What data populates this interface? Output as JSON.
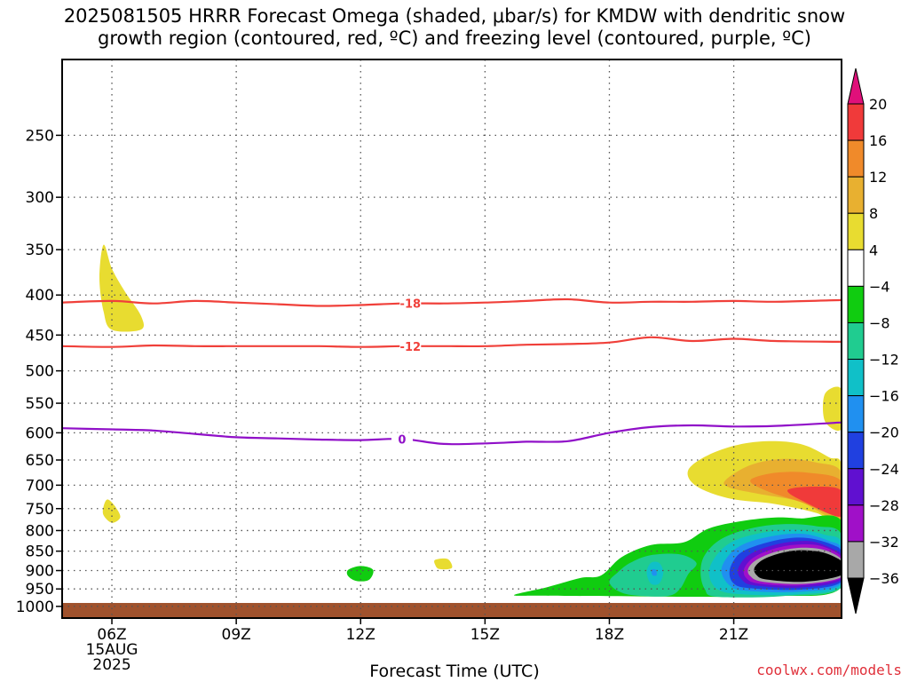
{
  "chart_data": {
    "type": "heatmap",
    "title": "2025081505 HRRR Forecast Omega (shaded, μbar/s) for KMDW with dendritic snow\ngrowth region (contoured, red, ºC) and freezing level (contoured, purple, ºC)",
    "xlabel": "Forecast Time (UTC)",
    "ylabel": "",
    "x_range_hours": [
      4.8,
      23.6
    ],
    "x_ticks": [
      {
        "hour": 6,
        "label": "06Z"
      },
      {
        "hour": 9,
        "label": "09Z"
      },
      {
        "hour": 12,
        "label": "12Z"
      },
      {
        "hour": 15,
        "label": "15Z"
      },
      {
        "hour": 18,
        "label": "18Z"
      },
      {
        "hour": 21,
        "label": "21Z"
      }
    ],
    "date_label": [
      "15AUG",
      "2025"
    ],
    "y_scale": "log-pressure (hPa), inverted",
    "y_range": [
      1035,
      200
    ],
    "y_ticks": [
      250,
      300,
      350,
      400,
      450,
      500,
      550,
      600,
      650,
      700,
      750,
      800,
      850,
      900,
      950,
      1000
    ],
    "grid": true,
    "colorbar": {
      "labels": [
        "20",
        "16",
        "12",
        "8",
        "4",
        "−4",
        "−8",
        "−12",
        "−16",
        "−20",
        "−24",
        "−28",
        "−32",
        "−36"
      ],
      "levels": [
        20,
        16,
        12,
        8,
        4,
        -4,
        -8,
        -12,
        -16,
        -20,
        -24,
        -28,
        -32,
        -36
      ],
      "bands": [
        {
          "from": 16,
          "to": 20,
          "color": "#f03a3a"
        },
        {
          "from": 12,
          "to": 16,
          "color": "#f08a2a"
        },
        {
          "from": 8,
          "to": 12,
          "color": "#e8b030"
        },
        {
          "from": 4,
          "to": 8,
          "color": "#e8dc30"
        },
        {
          "from": -4,
          "to": 4,
          "color": "#ffffff"
        },
        {
          "from": -8,
          "to": -4,
          "color": "#10cc10"
        },
        {
          "from": -12,
          "to": -8,
          "color": "#20cc90"
        },
        {
          "from": -16,
          "to": -12,
          "color": "#10c0c8"
        },
        {
          "from": -20,
          "to": -16,
          "color": "#2090f0"
        },
        {
          "from": -24,
          "to": -20,
          "color": "#2040e0"
        },
        {
          "from": -28,
          "to": -24,
          "color": "#6010d0"
        },
        {
          "from": -32,
          "to": -28,
          "color": "#a010c8"
        },
        {
          "from": -36,
          "to": -32,
          "color": "#a8a8a8"
        }
      ],
      "over_color": "#e0107a",
      "under_color": "#000000"
    },
    "contours": [
      {
        "label": "-18",
        "color": "#f0403a",
        "label_hour": 13.2,
        "points": [
          [
            4.8,
            409
          ],
          [
            6,
            407
          ],
          [
            7,
            410
          ],
          [
            8,
            407
          ],
          [
            9,
            409
          ],
          [
            10,
            411
          ],
          [
            11,
            413
          ],
          [
            12,
            412
          ],
          [
            13,
            410
          ],
          [
            14,
            410
          ],
          [
            15,
            409
          ],
          [
            16,
            407
          ],
          [
            17,
            405
          ],
          [
            18,
            409
          ],
          [
            19,
            408
          ],
          [
            20,
            408
          ],
          [
            21,
            407
          ],
          [
            22,
            408
          ],
          [
            23.6,
            406
          ]
        ]
      },
      {
        "label": "-12",
        "color": "#f0403a",
        "label_hour": 13.2,
        "points": [
          [
            4.8,
            465
          ],
          [
            6,
            466
          ],
          [
            7,
            464
          ],
          [
            8,
            465
          ],
          [
            9,
            465
          ],
          [
            10,
            465
          ],
          [
            11,
            465
          ],
          [
            12,
            466
          ],
          [
            13,
            465
          ],
          [
            14,
            465
          ],
          [
            15,
            465
          ],
          [
            16,
            463
          ],
          [
            17,
            462
          ],
          [
            18,
            460
          ],
          [
            19,
            453
          ],
          [
            20,
            458
          ],
          [
            21,
            455
          ],
          [
            22,
            458
          ],
          [
            23.6,
            459
          ]
        ]
      },
      {
        "label": "0",
        "color": "#9010c8",
        "label_hour": 13.0,
        "points": [
          [
            4.8,
            592
          ],
          [
            6,
            594
          ],
          [
            7,
            596
          ],
          [
            8,
            602
          ],
          [
            9,
            608
          ],
          [
            10,
            610
          ],
          [
            11,
            612
          ],
          [
            12,
            613
          ],
          [
            13,
            611
          ],
          [
            14,
            620
          ],
          [
            15,
            619
          ],
          [
            16,
            616
          ],
          [
            17,
            615
          ],
          [
            18,
            600
          ],
          [
            19,
            590
          ],
          [
            20,
            587
          ],
          [
            21,
            589
          ],
          [
            22,
            588
          ],
          [
            23.6,
            582
          ]
        ]
      }
    ],
    "ground_color": "#a0522d",
    "ground_top_hpa": 990,
    "omega_regions": [
      {
        "value": 6,
        "color": "#e8dc30",
        "points": [
          [
            5.8,
            345
          ],
          [
            6.0,
            370
          ],
          [
            6.3,
            395
          ],
          [
            6.7,
            425
          ],
          [
            6.7,
            443
          ],
          [
            6.0,
            443
          ],
          [
            5.8,
            420
          ],
          [
            5.7,
            380
          ]
        ]
      },
      {
        "value": 6,
        "color": "#e8dc30",
        "points": [
          [
            5.9,
            730
          ],
          [
            6.1,
            748
          ],
          [
            6.2,
            770
          ],
          [
            6.0,
            782
          ],
          [
            5.8,
            765
          ],
          [
            5.8,
            745
          ]
        ]
      },
      {
        "value": -6,
        "color": "#10cc10",
        "points": [
          [
            11.7,
            898
          ],
          [
            12.0,
            888
          ],
          [
            12.3,
            898
          ],
          [
            12.2,
            925
          ],
          [
            11.9,
            928
          ],
          [
            11.7,
            915
          ]
        ]
      },
      {
        "value": 6,
        "color": "#e8dc30",
        "points": [
          [
            13.8,
            872
          ],
          [
            14.1,
            870
          ],
          [
            14.2,
            893
          ],
          [
            13.9,
            896
          ],
          [
            13.8,
            885
          ]
        ]
      },
      {
        "value": 6,
        "color": "#e8dc30",
        "points": [
          [
            23.6,
            528
          ],
          [
            23.2,
            535
          ],
          [
            23.2,
            580
          ],
          [
            23.6,
            593
          ]
        ]
      },
      {
        "value": 6,
        "color": "#e8dc30",
        "points": [
          [
            19.9,
            670
          ],
          [
            20.4,
            640
          ],
          [
            21.2,
            620
          ],
          [
            22.0,
            615
          ],
          [
            22.7,
            622
          ],
          [
            23.3,
            645
          ],
          [
            23.6,
            660
          ],
          [
            23.6,
            785
          ],
          [
            23.0,
            760
          ],
          [
            22.0,
            740
          ],
          [
            20.9,
            728
          ],
          [
            20.1,
            702
          ]
        ]
      },
      {
        "value": 10,
        "color": "#e8b030",
        "points": [
          [
            20.8,
            690
          ],
          [
            21.4,
            660
          ],
          [
            22.2,
            648
          ],
          [
            23.0,
            655
          ],
          [
            23.6,
            675
          ],
          [
            23.6,
            775
          ],
          [
            22.6,
            735
          ],
          [
            21.6,
            718
          ],
          [
            20.9,
            705
          ]
        ]
      },
      {
        "value": 14,
        "color": "#f08a2a",
        "points": [
          [
            21.4,
            690
          ],
          [
            22.0,
            675
          ],
          [
            22.8,
            675
          ],
          [
            23.6,
            692
          ],
          [
            23.6,
            765
          ],
          [
            22.6,
            735
          ],
          [
            21.8,
            712
          ]
        ]
      },
      {
        "value": 18,
        "color": "#f03a3a",
        "points": [
          [
            22.3,
            710
          ],
          [
            23.0,
            703
          ],
          [
            23.6,
            712
          ],
          [
            23.6,
            768
          ],
          [
            22.7,
            735
          ]
        ]
      },
      {
        "value": -6,
        "color": "#10cc10",
        "points": [
          [
            15.7,
            967
          ],
          [
            16.5,
            945
          ],
          [
            17.3,
            920
          ],
          [
            17.8,
            913
          ],
          [
            18.3,
            865
          ],
          [
            19.0,
            835
          ],
          [
            19.8,
            828
          ],
          [
            20.4,
            795
          ],
          [
            21.2,
            778
          ],
          [
            22.0,
            770
          ],
          [
            22.6,
            772
          ],
          [
            23.6,
            778
          ],
          [
            23.6,
            945
          ],
          [
            22.0,
            970
          ],
          [
            20.0,
            972
          ],
          [
            18.0,
            970
          ],
          [
            16.3,
            969
          ]
        ]
      },
      {
        "value": -10,
        "color": "#20cc90",
        "points": [
          [
            18.0,
            930
          ],
          [
            18.2,
            905
          ],
          [
            18.5,
            880
          ],
          [
            19.0,
            860
          ],
          [
            19.7,
            858
          ],
          [
            20.1,
            880
          ],
          [
            19.9,
            910
          ],
          [
            19.7,
            950
          ],
          [
            19.4,
            970
          ],
          [
            18.6,
            968
          ],
          [
            18.2,
            955
          ]
        ]
      },
      {
        "value": -10,
        "color": "#20cc90",
        "points": [
          [
            20.2,
            905
          ],
          [
            20.3,
            860
          ],
          [
            20.7,
            820
          ],
          [
            21.4,
            795
          ],
          [
            22.2,
            785
          ],
          [
            23.0,
            790
          ],
          [
            23.6,
            810
          ],
          [
            23.6,
            945
          ],
          [
            22.2,
            970
          ],
          [
            20.6,
            972
          ],
          [
            20.3,
            950
          ]
        ]
      },
      {
        "value": -14,
        "color": "#10c0c8",
        "points": [
          [
            18.9,
            905
          ],
          [
            19.0,
            880
          ],
          [
            19.2,
            880
          ],
          [
            19.3,
            905
          ],
          [
            19.2,
            935
          ],
          [
            19.0,
            935
          ]
        ]
      },
      {
        "value": -14,
        "color": "#10c0c8",
        "points": [
          [
            20.4,
            905
          ],
          [
            20.6,
            858
          ],
          [
            21.0,
            825
          ],
          [
            21.7,
            805
          ],
          [
            22.5,
            798
          ],
          [
            23.2,
            810
          ],
          [
            23.6,
            830
          ],
          [
            23.6,
            940
          ],
          [
            22.6,
            965
          ],
          [
            21.2,
            965
          ],
          [
            20.6,
            950
          ]
        ]
      },
      {
        "value": -18,
        "color": "#2090f0",
        "points": [
          [
            19.02,
            898
          ],
          [
            19.12,
            898
          ],
          [
            19.14,
            912
          ],
          [
            19.04,
            912
          ]
        ]
      },
      {
        "value": -18,
        "color": "#2090f0",
        "points": [
          [
            20.7,
            900
          ],
          [
            20.9,
            858
          ],
          [
            21.3,
            830
          ],
          [
            22.0,
            812
          ],
          [
            22.7,
            808
          ],
          [
            23.3,
            825
          ],
          [
            23.6,
            845
          ],
          [
            23.6,
            935
          ],
          [
            22.6,
            958
          ],
          [
            21.3,
            955
          ],
          [
            20.9,
            940
          ]
        ]
      },
      {
        "value": -22,
        "color": "#2040e0",
        "points": [
          [
            20.9,
            900
          ],
          [
            21.1,
            860
          ],
          [
            21.5,
            838
          ],
          [
            22.2,
            820
          ],
          [
            22.8,
            818
          ],
          [
            23.4,
            835
          ],
          [
            23.6,
            855
          ],
          [
            23.6,
            930
          ],
          [
            22.6,
            952
          ],
          [
            21.4,
            948
          ],
          [
            21.0,
            935
          ]
        ]
      },
      {
        "value": -26,
        "color": "#6010d0",
        "points": [
          [
            21.1,
            898
          ],
          [
            21.3,
            865
          ],
          [
            21.7,
            843
          ],
          [
            22.3,
            828
          ],
          [
            22.9,
            826
          ],
          [
            23.4,
            845
          ],
          [
            23.6,
            862
          ],
          [
            23.6,
            925
          ],
          [
            22.6,
            946
          ],
          [
            21.5,
            940
          ],
          [
            21.2,
            925
          ]
        ]
      },
      {
        "value": -30,
        "color": "#a010c8",
        "points": [
          [
            21.25,
            896
          ],
          [
            21.45,
            868
          ],
          [
            21.85,
            848
          ],
          [
            22.4,
            835
          ],
          [
            23.0,
            835
          ],
          [
            23.45,
            852
          ],
          [
            23.6,
            870
          ],
          [
            23.6,
            920
          ],
          [
            22.6,
            940
          ],
          [
            21.6,
            935
          ],
          [
            21.3,
            920
          ]
        ]
      },
      {
        "value": -34,
        "color": "#a8a8a8",
        "points": [
          [
            21.35,
            895
          ],
          [
            21.55,
            872
          ],
          [
            22.0,
            852
          ],
          [
            22.55,
            842
          ],
          [
            23.1,
            845
          ],
          [
            23.5,
            862
          ],
          [
            23.6,
            878
          ],
          [
            23.6,
            917
          ],
          [
            22.7,
            936
          ],
          [
            21.7,
            930
          ],
          [
            21.4,
            915
          ]
        ]
      },
      {
        "value": -38,
        "color": "#000000",
        "points": [
          [
            21.5,
            893
          ],
          [
            21.7,
            872
          ],
          [
            22.1,
            856
          ],
          [
            22.55,
            848
          ],
          [
            23.1,
            852
          ],
          [
            23.5,
            868
          ],
          [
            23.6,
            880
          ],
          [
            23.6,
            912
          ],
          [
            22.7,
            930
          ],
          [
            21.8,
            924
          ],
          [
            21.55,
            912
          ]
        ]
      }
    ]
  },
  "credit": "coolwx.com/models"
}
